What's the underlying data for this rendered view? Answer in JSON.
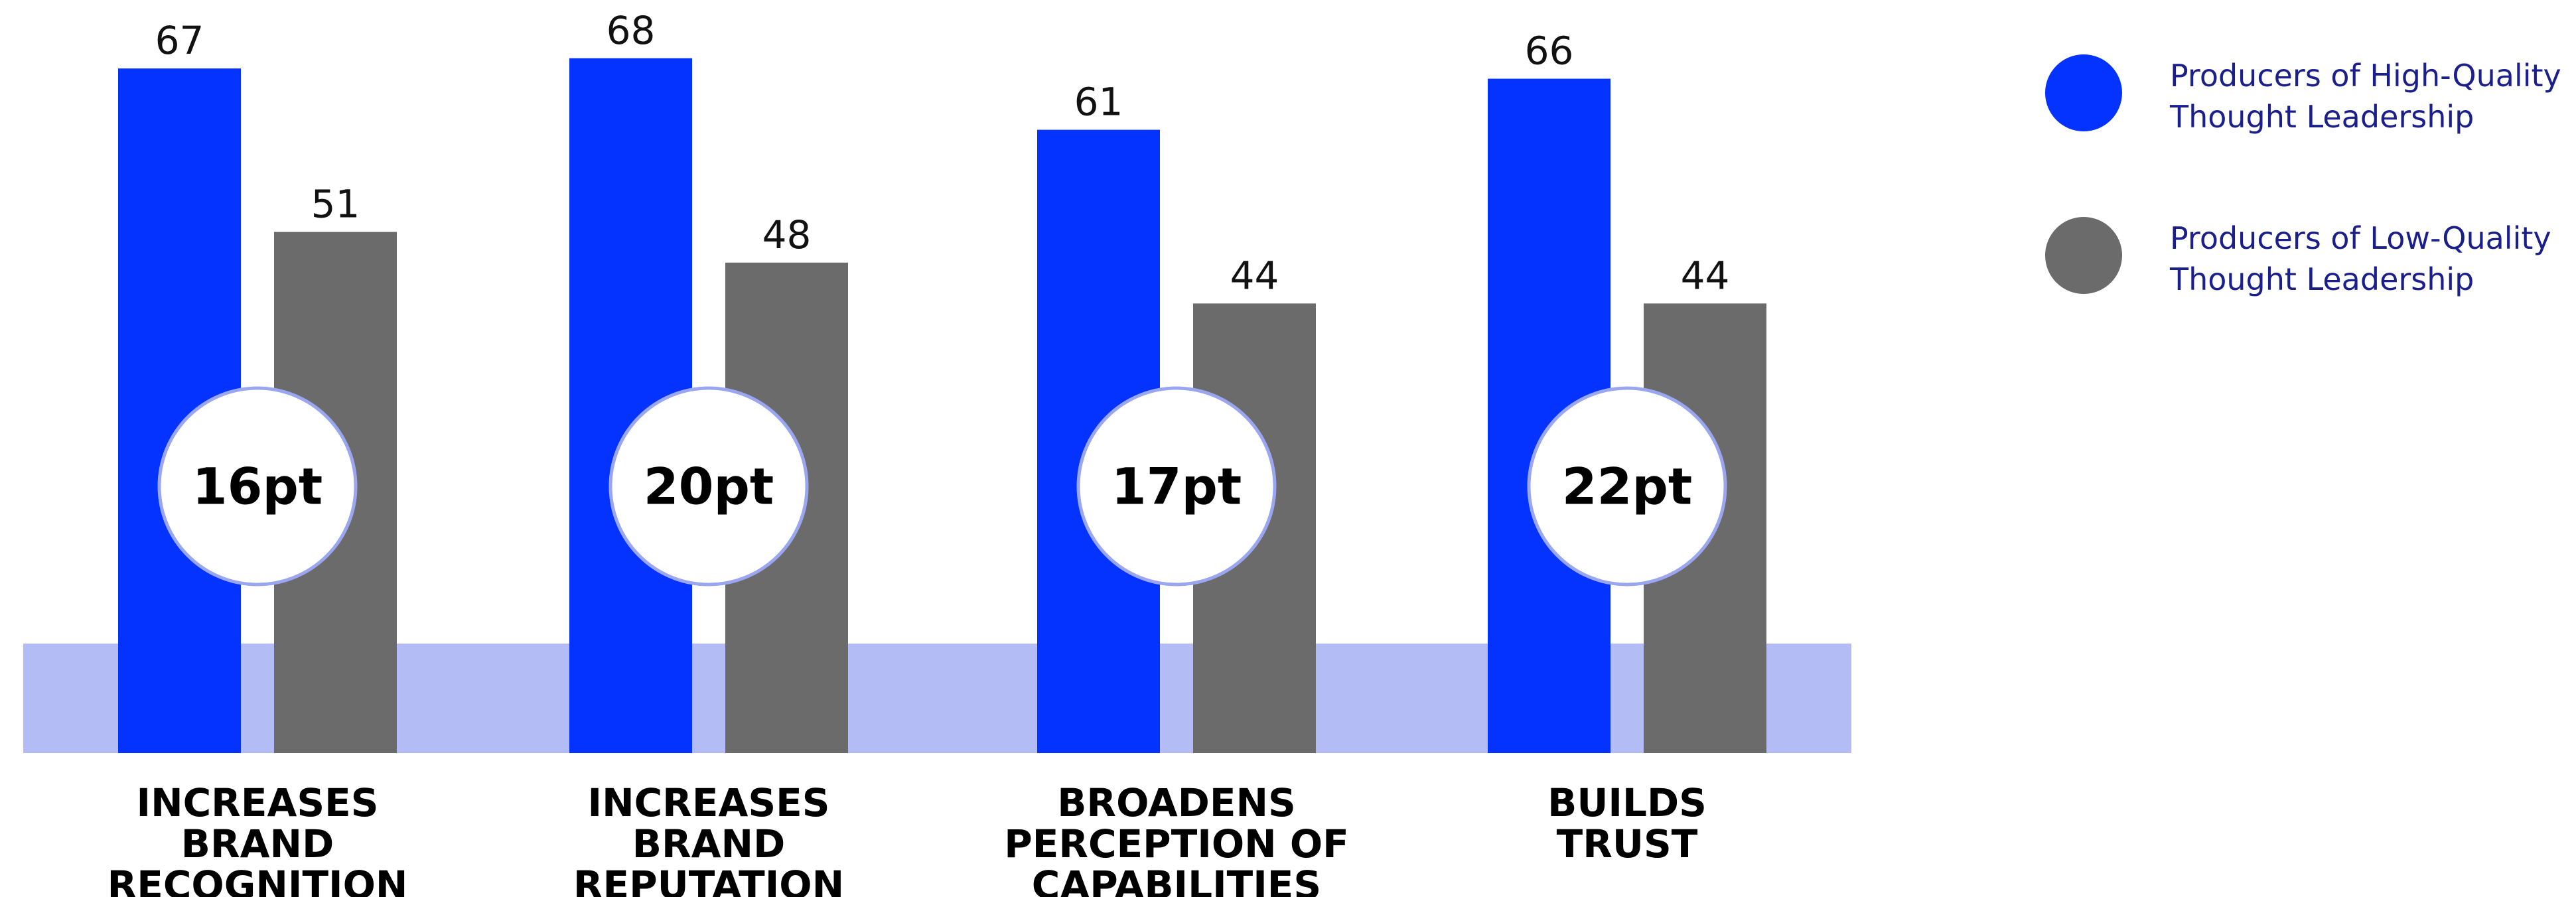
{
  "chart_data": {
    "type": "bar",
    "categories": [
      [
        "INCREASES",
        "BRAND",
        "RECOGNITION"
      ],
      [
        "INCREASES",
        "BRAND",
        "REPUTATION"
      ],
      [
        "BROADENS",
        "PERCEPTION OF",
        "CAPABILITIES"
      ],
      [
        "BUILDS",
        "TRUST"
      ]
    ],
    "series": [
      {
        "name": [
          "Producers of High-Quality",
          "Thought Leadership"
        ],
        "values": [
          67,
          68,
          61,
          66
        ],
        "color": "#0433ff"
      },
      {
        "name": [
          "Producers of Low-Quality",
          "Thought Leadership"
        ],
        "values": [
          51,
          48,
          44,
          44
        ],
        "color": "#6b6b6b"
      }
    ],
    "gap_labels": [
      "16pt",
      "20pt",
      "17pt",
      "22pt"
    ],
    "ylim": [
      0,
      80
    ],
    "band_color": "#b3bcf5",
    "bubble_border_color": "#9aa6f0",
    "legend_placement": "top-right",
    "grid": false
  }
}
